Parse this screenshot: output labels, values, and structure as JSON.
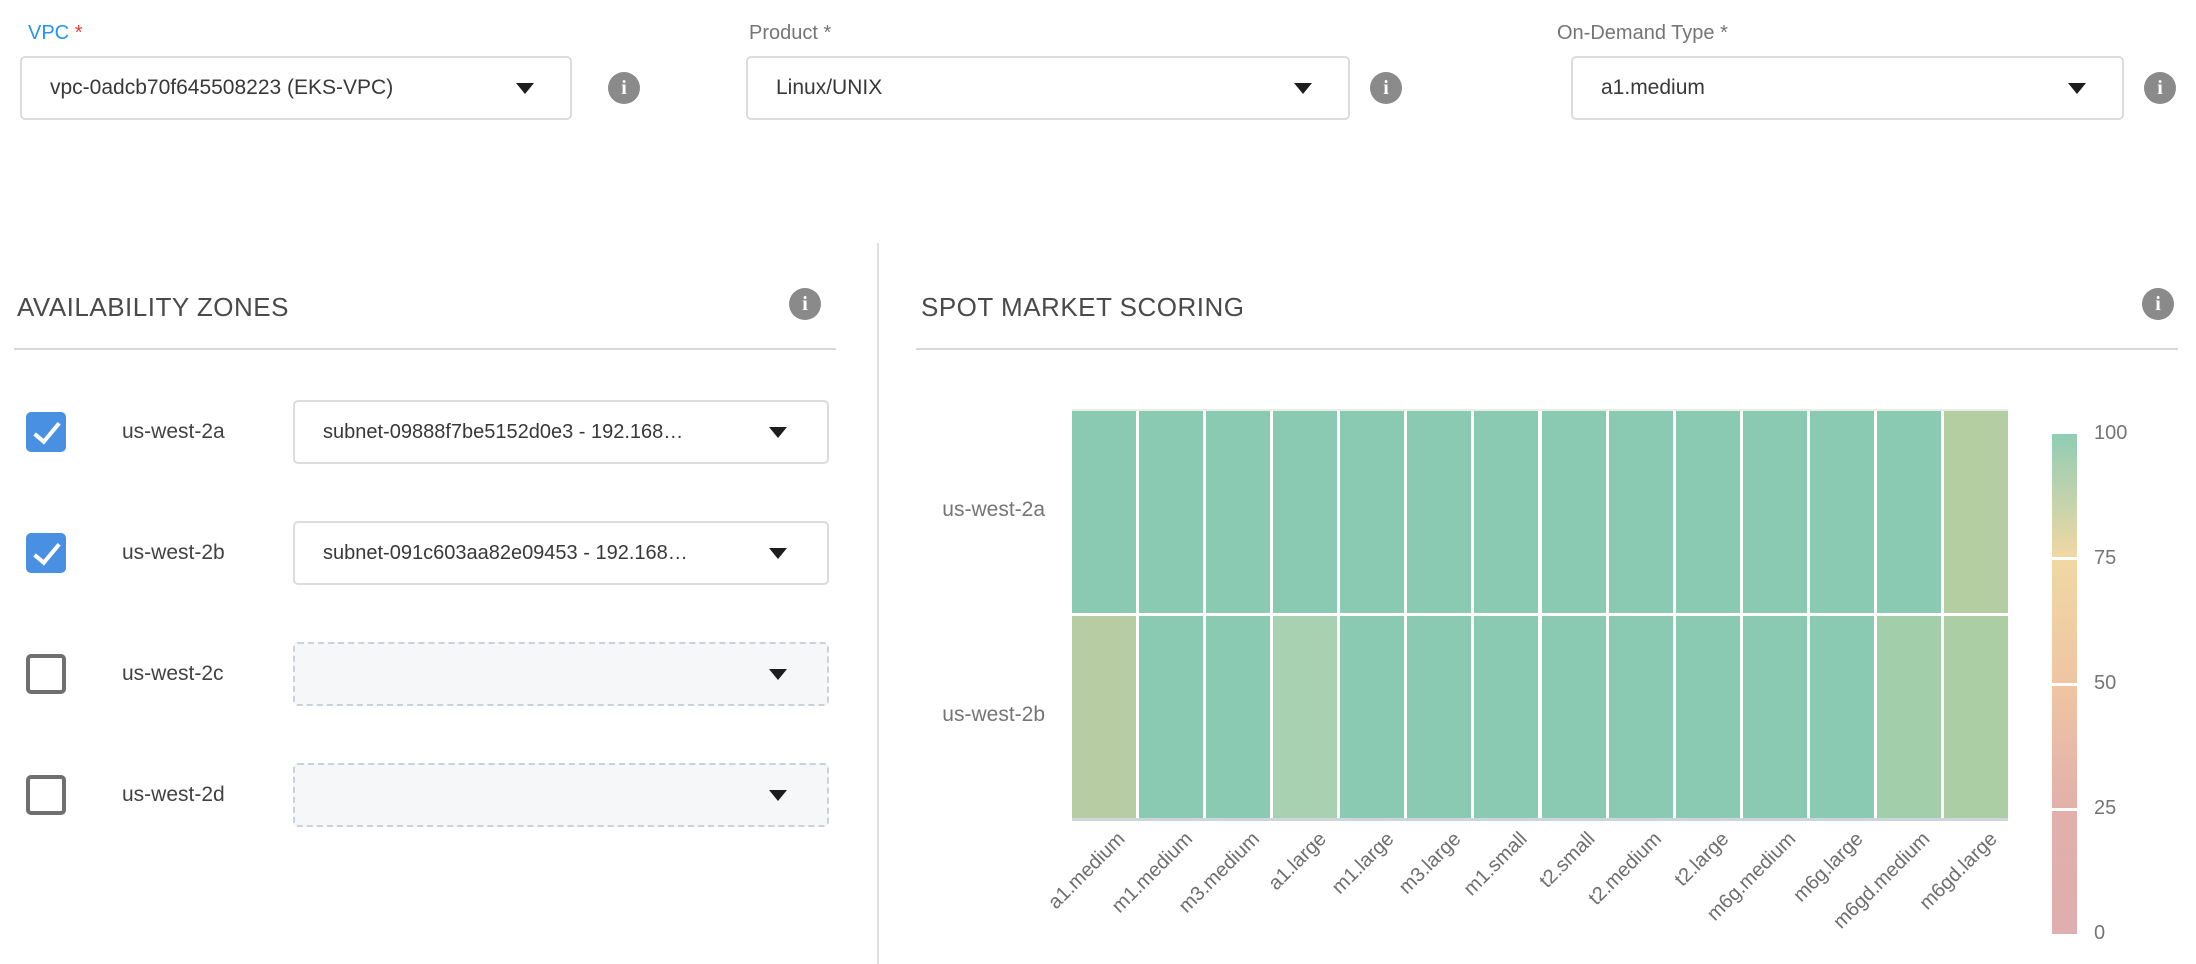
{
  "colors": {
    "vpc_label_blue": "#2196F3",
    "required_red": "#E53935",
    "field_label_gray": "#757575",
    "checkbox_blue": "#4A90E2",
    "heatmap_green": "#8ACAB2",
    "heatmap_axis": "#ccd5dc",
    "info_icon_gray": "#8A8A8A"
  },
  "icons": {
    "info_glyph": "i"
  },
  "top_fields": {
    "vpc": {
      "label": "VPC",
      "required_mark": "*",
      "value": "vpc-0adcb70f645508223 (EKS-VPC)"
    },
    "product": {
      "label": "Product",
      "required_mark": "*",
      "value": "Linux/UNIX"
    },
    "on_demand_type": {
      "label": "On-Demand Type",
      "required_mark": "*",
      "value": "a1.medium"
    }
  },
  "availability_zones": {
    "title": "AVAILABILITY ZONES",
    "rows": [
      {
        "zone": "us-west-2a",
        "checked": true,
        "subnet": "subnet-09888f7be5152d0e3 - 192.168…"
      },
      {
        "zone": "us-west-2b",
        "checked": true,
        "subnet": "subnet-091c603aa82e09453 - 192.168…"
      },
      {
        "zone": "us-west-2c",
        "checked": false,
        "subnet": ""
      },
      {
        "zone": "us-west-2d",
        "checked": false,
        "subnet": ""
      }
    ]
  },
  "spot_market_scoring": {
    "title": "SPOT MARKET SCORING"
  },
  "chart_data": {
    "type": "heatmap",
    "title": "SPOT MARKET SCORING",
    "rows": [
      "us-west-2a",
      "us-west-2b"
    ],
    "columns": [
      "a1.medium",
      "m1.medium",
      "m3.medium",
      "a1.large",
      "m1.large",
      "m3.large",
      "m1.small",
      "t2.small",
      "t2.medium",
      "t2.large",
      "m6g.medium",
      "m6g.large",
      "m6gd.medium",
      "m6gd.large"
    ],
    "scores": [
      [
        88,
        88,
        88,
        88,
        88,
        88,
        88,
        88,
        88,
        88,
        88,
        88,
        88,
        75
      ],
      [
        74,
        88,
        88,
        82,
        88,
        88,
        88,
        88,
        88,
        88,
        88,
        88,
        79,
        77
      ]
    ],
    "cell_colors": [
      [
        "#8ACAB2",
        "#8ACAB2",
        "#8ACAB2",
        "#8ACAB2",
        "#8ACAB2",
        "#8ACAB2",
        "#8ACAB2",
        "#8ACAB2",
        "#8ACAB2",
        "#8ACAB2",
        "#8ACAB2",
        "#8ACAB2",
        "#8ACAB2",
        "#B4CEA2"
      ],
      [
        "#B8CCA4",
        "#8ACAB2",
        "#8ACAB2",
        "#A7D1B0",
        "#8ACAB2",
        "#8ACAB2",
        "#8ACAB2",
        "#8ACAB2",
        "#8ACAB2",
        "#8ACAB2",
        "#8ACAB2",
        "#8ACAB2",
        "#A2CEAA",
        "#ABCEA5"
      ]
    ],
    "colorbar": {
      "ticks": [
        100,
        75,
        50,
        25,
        0
      ],
      "range": [
        0,
        100
      ],
      "gradient": [
        "#8FCDB4",
        "#F0D8A4",
        "#EFC5A3",
        "#E2B0AA",
        "#DFAEAE"
      ]
    },
    "grid": false,
    "legend_position": "right"
  }
}
